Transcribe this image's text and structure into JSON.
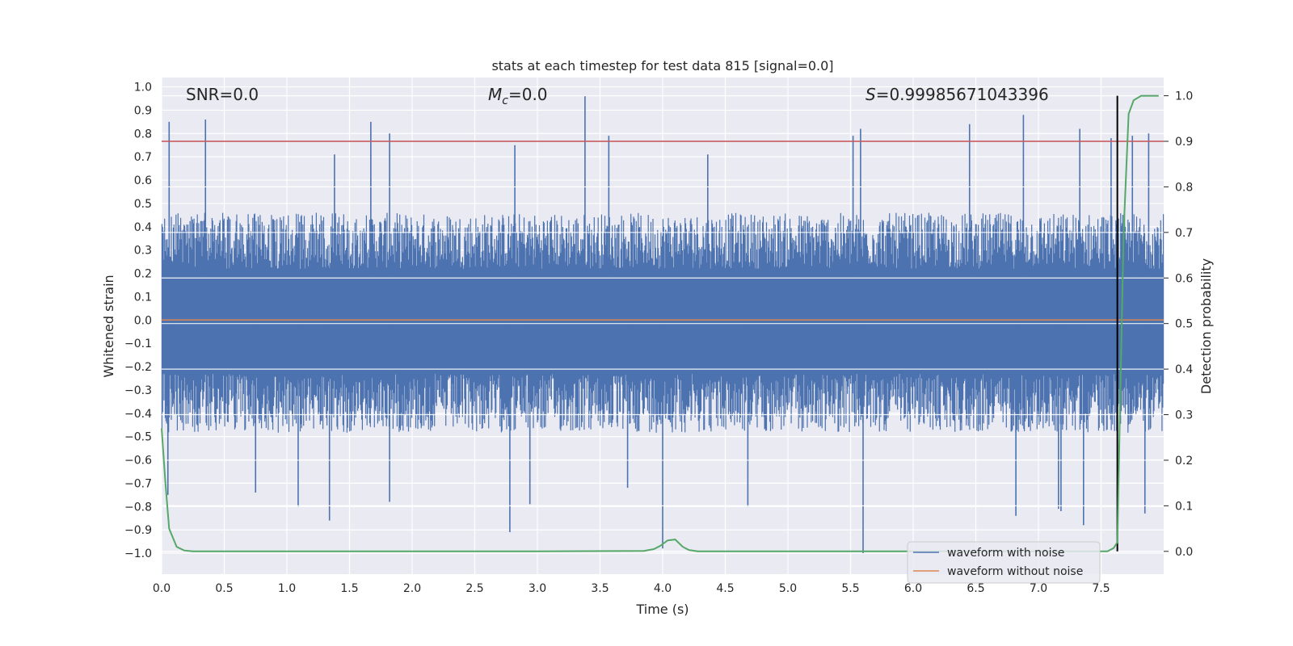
{
  "chart_data": {
    "type": "line",
    "title": "stats at each timestep for test data 815 [signal=0.0]",
    "xlabel": "Time (s)",
    "ylabel": "Whitened strain",
    "y2label": "Detection probability",
    "xlim": [
      0.0,
      8.0
    ],
    "ylim": [
      -1.09,
      1.04
    ],
    "y2lim": [
      -0.05,
      1.04
    ],
    "x_ticks": [
      0.0,
      0.5,
      1.0,
      1.5,
      2.0,
      2.5,
      3.0,
      3.5,
      4.0,
      4.5,
      5.0,
      5.5,
      6.0,
      6.5,
      7.0,
      7.5
    ],
    "x_tick_labels": [
      "0.0",
      "0.5",
      "1.0",
      "1.5",
      "2.0",
      "2.5",
      "3.0",
      "3.5",
      "4.0",
      "4.5",
      "5.0",
      "5.5",
      "6.0",
      "6.5",
      "7.0",
      "7.5"
    ],
    "y_ticks": [
      1.0,
      0.9,
      0.8,
      0.7,
      0.6,
      0.5,
      0.4,
      0.3,
      0.2,
      0.1,
      0.0,
      -0.1,
      -0.2,
      -0.3,
      -0.4,
      -0.5,
      -0.6,
      -0.7,
      -0.8,
      -0.9,
      -1.0
    ],
    "y_tick_labels": [
      "1.0",
      "0.9",
      "0.8",
      "0.7",
      "0.6",
      "0.5",
      "0.4",
      "0.3",
      "0.2",
      "0.1",
      "0.0",
      "−0.1",
      "−0.2",
      "−0.3",
      "−0.4",
      "−0.5",
      "−0.6",
      "−0.7",
      "−0.8",
      "−0.9",
      "−1.0"
    ],
    "y2_ticks": [
      1.0,
      0.9,
      0.8,
      0.7,
      0.6,
      0.5,
      0.4,
      0.3,
      0.2,
      0.1,
      0.0
    ],
    "y2_tick_labels": [
      "1.0",
      "0.9",
      "0.8",
      "0.7",
      "0.6",
      "0.5",
      "0.4",
      "0.3",
      "0.2",
      "0.1",
      "0.0"
    ],
    "annotations": {
      "snr": "SNR=0.0",
      "mc_symbol": "M",
      "mc_sub": "c",
      "mc_value": "=0.0",
      "s_symbol": "S",
      "s_value": "=0.99985671043396"
    },
    "threshold": {
      "axis": "y2",
      "value": 0.9,
      "color": "#c44e52"
    },
    "detection_time": 7.63,
    "legend": {
      "location": "lower right",
      "entries": [
        {
          "label": "waveform with noise",
          "color": "#4c72b0"
        },
        {
          "label": "waveform without noise",
          "color": "#dd8452"
        }
      ]
    },
    "series": [
      {
        "name": "waveform with noise",
        "axis": "y",
        "color": "#4c72b0",
        "style": "dense-noise",
        "typical_upper": 0.4,
        "typical_lower": -0.42,
        "spikes": [
          {
            "x": 0.06,
            "y": 0.85
          },
          {
            "x": 0.35,
            "y": 0.86
          },
          {
            "x": 1.67,
            "y": 0.85
          },
          {
            "x": 1.82,
            "y": 0.8
          },
          {
            "x": 3.38,
            "y": 0.96
          },
          {
            "x": 3.57,
            "y": 0.79
          },
          {
            "x": 5.58,
            "y": 0.82
          },
          {
            "x": 5.52,
            "y": 0.79
          },
          {
            "x": 6.45,
            "y": 0.84
          },
          {
            "x": 6.88,
            "y": 0.88
          },
          {
            "x": 7.33,
            "y": 0.82
          },
          {
            "x": 7.58,
            "y": 0.78
          },
          {
            "x": 7.75,
            "y": 0.79
          },
          {
            "x": 7.88,
            "y": 0.8
          },
          {
            "x": 1.38,
            "y": 0.71
          },
          {
            "x": 2.82,
            "y": 0.75
          },
          {
            "x": 4.36,
            "y": 0.71
          },
          {
            "x": 0.05,
            "y": -0.75
          },
          {
            "x": 0.75,
            "y": -0.74
          },
          {
            "x": 1.09,
            "y": -0.8
          },
          {
            "x": 1.34,
            "y": -0.86
          },
          {
            "x": 1.82,
            "y": -0.78
          },
          {
            "x": 2.78,
            "y": -0.91
          },
          {
            "x": 2.94,
            "y": -0.79
          },
          {
            "x": 4.0,
            "y": -0.98
          },
          {
            "x": 4.68,
            "y": -0.8
          },
          {
            "x": 5.6,
            "y": -1.0
          },
          {
            "x": 7.16,
            "y": -0.81
          },
          {
            "x": 7.18,
            "y": -0.82
          },
          {
            "x": 7.36,
            "y": -0.88
          },
          {
            "x": 7.85,
            "y": -0.83
          },
          {
            "x": 6.82,
            "y": -0.84
          },
          {
            "x": 3.72,
            "y": -0.72
          }
        ]
      },
      {
        "name": "waveform without noise",
        "axis": "y",
        "color": "#dd8452",
        "x": [
          0.0,
          8.0
        ],
        "y": [
          0.0,
          0.0
        ]
      },
      {
        "name": "detection probability",
        "axis": "y2",
        "color": "#55a868",
        "x": [
          0.0,
          0.03,
          0.06,
          0.12,
          0.18,
          0.25,
          0.4,
          1.0,
          2.0,
          3.0,
          3.85,
          3.93,
          3.98,
          4.04,
          4.1,
          4.16,
          4.21,
          4.28,
          4.35,
          5.0,
          6.0,
          7.0,
          7.55,
          7.6,
          7.63,
          7.65,
          7.68,
          7.72,
          7.76,
          7.82,
          7.96
        ],
        "y": [
          0.27,
          0.15,
          0.05,
          0.01,
          0.002,
          0.0,
          0.0,
          0.0,
          0.0,
          0.0,
          0.001,
          0.005,
          0.012,
          0.024,
          0.026,
          0.01,
          0.003,
          0.0,
          0.0,
          0.0,
          0.0,
          0.0,
          0.0,
          0.007,
          0.02,
          0.3,
          0.7,
          0.96,
          0.99,
          1.0,
          1.0
        ]
      }
    ]
  }
}
